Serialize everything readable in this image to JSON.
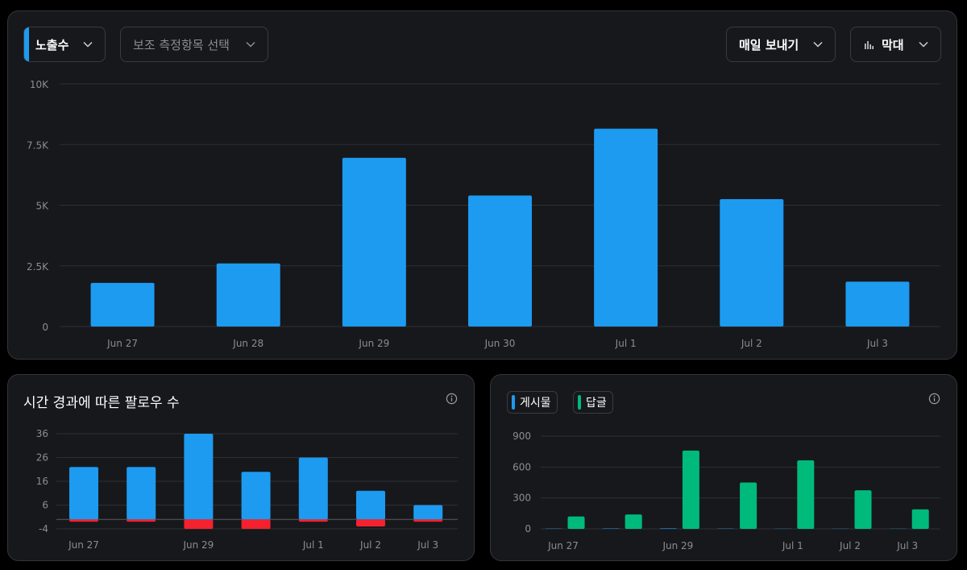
{
  "top_panel": {
    "metric_label": "노출수",
    "secondary_label": "보조 측정항목 선택",
    "export_label": "매일 보내기",
    "chart_type_label": "막대"
  },
  "followers_panel": {
    "title": "시간 경과에 따른 팔로우 수"
  },
  "posts_panel": {
    "legend_posts": "게시물",
    "legend_replies": "답글"
  },
  "colors": {
    "blue": "#1d9bf0",
    "red": "#f4212e",
    "green": "#00ba7c"
  },
  "chart_data": [
    {
      "type": "bar",
      "categories": [
        "Jun 27",
        "Jun 28",
        "Jun 29",
        "Jun 30",
        "Jul 1",
        "Jul 2",
        "Jul 3"
      ],
      "series": [
        {
          "values": [
            1800,
            2600,
            6950,
            5400,
            8150,
            5250,
            1850
          ]
        }
      ],
      "yticks": [
        0,
        2500,
        5000,
        7500,
        10000
      ],
      "ytick_labels": [
        "0",
        "2.5K",
        "5K",
        "7.5K",
        "10K"
      ],
      "ylim": [
        0,
        10000
      ],
      "grid": true
    },
    {
      "type": "bar",
      "categories": [
        "Jun 27",
        "Jun 28",
        "Jun 29",
        "Jun 30",
        "Jul 1",
        "Jul 2",
        "Jul 3"
      ],
      "x_tick_labels": [
        "Jun 27",
        "",
        "Jun 29",
        "",
        "Jul 1",
        "Jul 2",
        "Jul 3"
      ],
      "series": [
        {
          "values": [
            22,
            22,
            36,
            20,
            26,
            12,
            6
          ]
        },
        {
          "values": [
            -1,
            -1,
            -4,
            -4,
            -1,
            -3,
            -1
          ]
        }
      ],
      "yticks": [
        -4,
        6,
        16,
        26,
        36
      ],
      "ylim": [
        -4,
        36
      ],
      "grid": true
    },
    {
      "type": "bar",
      "categories": [
        "Jun 27",
        "Jun 28",
        "Jun 29",
        "Jun 30",
        "Jul 1",
        "Jul 2",
        "Jul 3"
      ],
      "x_tick_labels": [
        "Jun 27",
        "",
        "Jun 29",
        "",
        "Jul 1",
        "Jul 2",
        "Jul 3"
      ],
      "series": [
        {
          "name": "게시물",
          "values": [
            3,
            4,
            5,
            3,
            2,
            2,
            2
          ]
        },
        {
          "name": "답글",
          "values": [
            120,
            140,
            760,
            450,
            665,
            375,
            190
          ]
        }
      ],
      "yticks": [
        0,
        300,
        600,
        900
      ],
      "ylim": [
        0,
        900
      ],
      "grid": true,
      "legend": "top-left"
    }
  ]
}
